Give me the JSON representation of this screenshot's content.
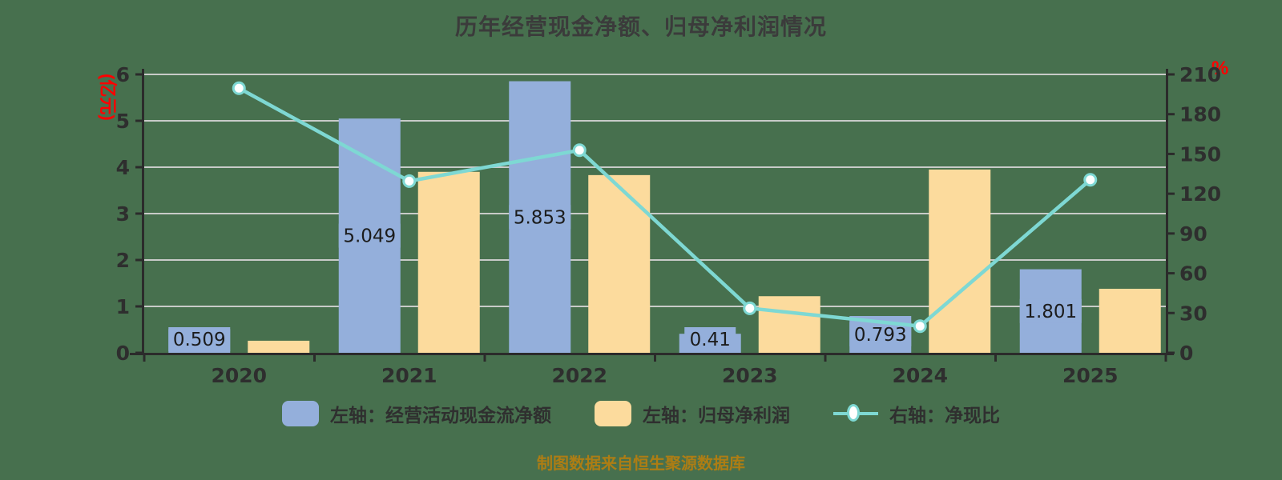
{
  "footer": "制图数据来自恒生聚源数据库",
  "chart_data": {
    "type": "bar",
    "subtype": "grouped-bars-with-line-dual-axis",
    "title": "历年经营现金净额、归母净利润情况",
    "categories": [
      "2020",
      "2021",
      "2022",
      "2023",
      "2024",
      "2025"
    ],
    "series": [
      {
        "name": "左轴：经营活动现金流净额",
        "type": "bar",
        "axis": "left",
        "color": "#94AFDB",
        "values": [
          0.509,
          5.049,
          5.853,
          0.41,
          0.793,
          1.801
        ],
        "data_labels": [
          "0.509",
          "5.049",
          "5.853",
          "0.41",
          "0.793",
          "1.801"
        ]
      },
      {
        "name": "左轴：归母净利润",
        "type": "bar",
        "axis": "left",
        "color": "#FCDB9D",
        "values": [
          0.26,
          3.9,
          3.83,
          1.22,
          3.95,
          1.38
        ]
      },
      {
        "name": "右轴：净现比",
        "type": "line",
        "axis": "right",
        "color": "#7ED8D3",
        "marker": "circle-white-fill",
        "values": [
          199.6,
          129.5,
          152.8,
          33.6,
          20.1,
          130.5
        ]
      }
    ],
    "left_axis": {
      "label": "(亿元)",
      "min": 0,
      "max": 6,
      "tick_step": 1,
      "ticks": [
        0,
        1,
        2,
        3,
        4,
        5,
        6
      ],
      "label_color": "#FF0000"
    },
    "right_axis": {
      "label": "%",
      "min": 0,
      "max": 210,
      "tick_step": 30,
      "ticks": [
        0,
        30,
        60,
        90,
        120,
        150,
        180,
        210
      ],
      "label_color": "#FF0000"
    },
    "grid": {
      "horizontal": true,
      "vertical": false,
      "color": "#C8CBC8"
    },
    "legend_position": "bottom",
    "colors": {
      "background": "#47704E",
      "axis": "#2B2B2B",
      "tick_text": "#2E2E2E",
      "title_text": "#3B3B3B",
      "bar_label_text": "#1C1C1C",
      "footer_text": "#AD7D14",
      "marker_fill": "#FFFFFF"
    }
  }
}
